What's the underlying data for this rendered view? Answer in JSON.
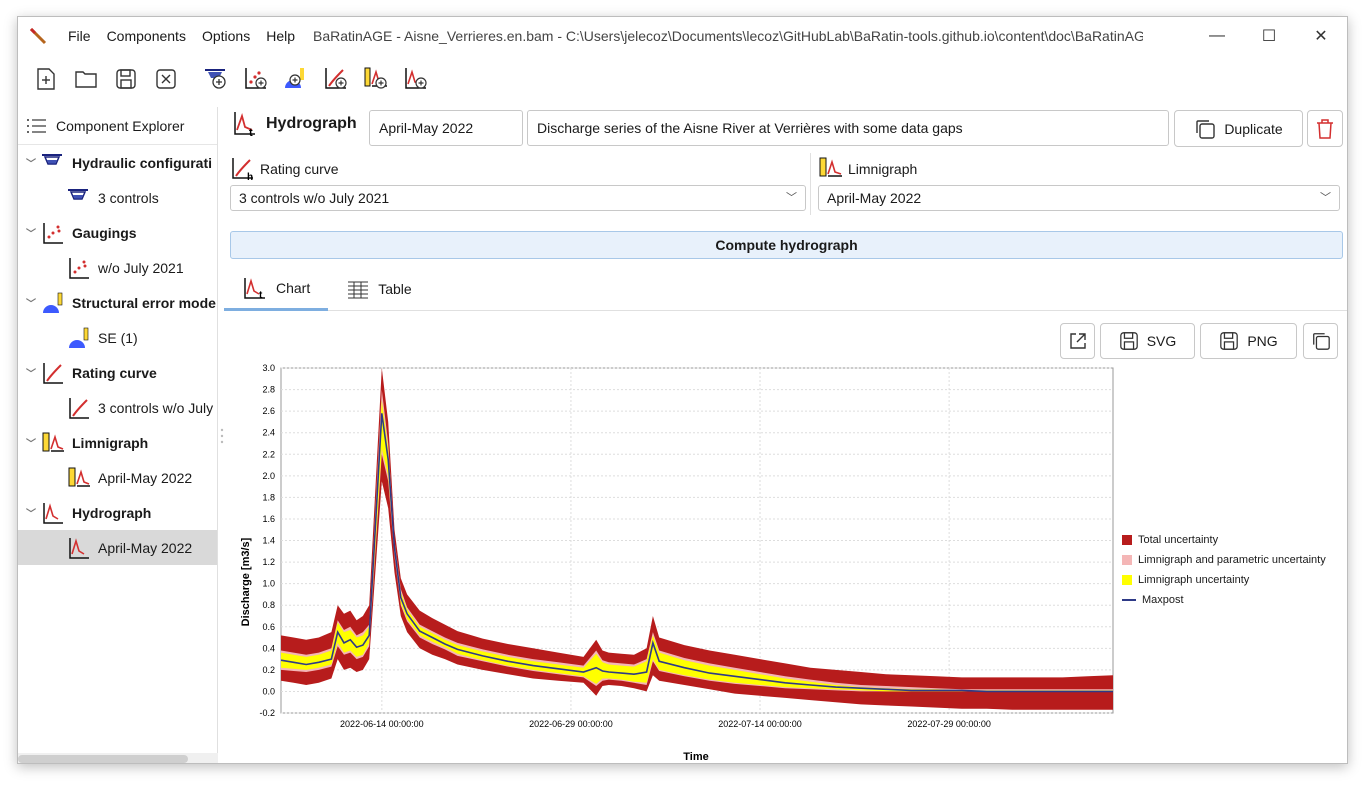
{
  "window": {
    "menu": [
      "File",
      "Components",
      "Options",
      "Help"
    ],
    "title": "BaRatinAGE - Aisne_Verrieres.en.bam - C:\\Users\\jelecoz\\Documents\\lecoz\\GitHubLab\\BaRatin-tools.github.io\\content\\doc\\BaRatinAGE\\Ai",
    "controls": [
      "minimize-icon",
      "maximize-icon",
      "close-icon"
    ]
  },
  "toolbar": {
    "buttons": [
      "new-file-icon",
      "open-folder-icon",
      "save-icon",
      "close-file-icon",
      "add-hydraulic-config-icon",
      "add-gaugings-icon",
      "add-structural-error-icon",
      "add-rating-curve-icon",
      "add-limnigraph-icon",
      "add-hydrograph-icon"
    ]
  },
  "explorer": {
    "title": "Component Explorer",
    "items": [
      {
        "label": "Hydraulic configurati",
        "level": 0,
        "icon": "hydraulic-config-icon"
      },
      {
        "label": "3 controls",
        "level": 1,
        "icon": "hydraulic-config-icon"
      },
      {
        "label": "Gaugings",
        "level": 0,
        "icon": "gaugings-icon"
      },
      {
        "label": "w/o July 2021",
        "level": 1,
        "icon": "gaugings-icon"
      },
      {
        "label": "Structural error mode",
        "level": 0,
        "icon": "structural-error-icon"
      },
      {
        "label": "SE (1)",
        "level": 1,
        "icon": "structural-error-icon"
      },
      {
        "label": "Rating curve",
        "level": 0,
        "icon": "rating-curve-icon"
      },
      {
        "label": "3 controls w/o July",
        "level": 1,
        "icon": "rating-curve-icon"
      },
      {
        "label": "Limnigraph",
        "level": 0,
        "icon": "limnigraph-icon"
      },
      {
        "label": "April-May 2022",
        "level": 1,
        "icon": "limnigraph-icon"
      },
      {
        "label": "Hydrograph",
        "level": 0,
        "icon": "hydrograph-icon"
      },
      {
        "label": "April-May 2022",
        "level": 1,
        "icon": "hydrograph-icon",
        "selected": true
      }
    ]
  },
  "hydrograph": {
    "title": "Hydrograph",
    "name": "April-May 2022",
    "description": "Discharge series of the Aisne River at Verrières with some data gaps",
    "duplicate_label": "Duplicate",
    "rating_curve_label": "Rating curve",
    "rating_curve_value": "3 controls w/o July 2021",
    "limnigraph_label": "Limnigraph",
    "limnigraph_value": "April-May 2022",
    "compute_label": "Compute hydrograph"
  },
  "tabs": [
    {
      "label": "Chart",
      "active": true
    },
    {
      "label": "Table",
      "active": false
    }
  ],
  "chart_actions": {
    "svg_label": "SVG",
    "png_label": "PNG"
  },
  "chart_data": {
    "type": "area",
    "xlabel": "Time",
    "ylabel": "Discharge [m3/s]",
    "ylim": [
      -0.2,
      3.0
    ],
    "yticks": [
      "3.0",
      "2.8",
      "2.6",
      "2.4",
      "2.2",
      "2.0",
      "1.8",
      "1.6",
      "1.4",
      "1.2",
      "1.0",
      "0.8",
      "0.6",
      "0.4",
      "0.2",
      "0.0",
      "-0.2"
    ],
    "xticks": [
      "2022-06-14 00:00:00",
      "2022-06-29 00:00:00",
      "2022-07-14 00:00:00",
      "2022-07-29 00:00:00"
    ],
    "x_days": [
      0,
      1,
      2,
      3,
      4,
      4.5,
      5,
      5.5,
      6,
      6.5,
      7,
      8,
      8.5,
      9,
      9.5,
      10,
      11,
      12,
      13,
      14,
      16,
      18,
      20,
      22,
      24,
      25,
      25.5,
      26,
      27,
      28,
      29,
      29.5,
      30,
      32,
      34,
      36,
      38,
      40,
      42,
      44,
      46,
      48,
      50,
      52,
      54,
      56,
      58,
      60,
      62,
      64,
      66
    ],
    "x_origin": "2022-06-06 00:00:00",
    "series": [
      {
        "name": "Total uncertainty",
        "color": "#b71c1c",
        "lower": [
          0.1,
          0.08,
          0.06,
          0.08,
          0.12,
          0.3,
          0.2,
          0.22,
          0.18,
          0.2,
          0.3,
          1.95,
          1.7,
          1.1,
          0.7,
          0.55,
          0.4,
          0.34,
          0.3,
          0.25,
          0.2,
          0.16,
          0.12,
          0.1,
          0.08,
          -0.04,
          0.05,
          0.06,
          0.05,
          0.03,
          0.0,
          0.15,
          0.1,
          0.06,
          0.02,
          -0.02,
          -0.04,
          -0.06,
          -0.08,
          -0.1,
          -0.12,
          -0.13,
          -0.14,
          -0.15,
          -0.16,
          -0.16,
          -0.17,
          -0.17,
          -0.17,
          -0.17,
          -0.17
        ],
        "upper": [
          0.52,
          0.5,
          0.48,
          0.5,
          0.55,
          0.8,
          0.72,
          0.75,
          0.66,
          0.7,
          0.8,
          3.0,
          2.5,
          1.5,
          1.05,
          0.9,
          0.75,
          0.68,
          0.62,
          0.56,
          0.49,
          0.44,
          0.4,
          0.36,
          0.32,
          0.48,
          0.38,
          0.36,
          0.35,
          0.34,
          0.4,
          0.7,
          0.5,
          0.43,
          0.38,
          0.34,
          0.3,
          0.26,
          0.22,
          0.2,
          0.18,
          0.16,
          0.15,
          0.14,
          0.13,
          0.13,
          0.13,
          0.13,
          0.13,
          0.14,
          0.15
        ]
      },
      {
        "name": "Limnigraph and parametric uncertainty",
        "color": "#f4b6b6",
        "lower": [
          0.2,
          0.19,
          0.18,
          0.2,
          0.23,
          0.42,
          0.34,
          0.36,
          0.3,
          0.32,
          0.42,
          2.2,
          1.95,
          1.25,
          0.8,
          0.65,
          0.5,
          0.44,
          0.39,
          0.33,
          0.28,
          0.23,
          0.19,
          0.16,
          0.13,
          0.05,
          0.1,
          0.11,
          0.1,
          0.08,
          0.06,
          0.28,
          0.19,
          0.14,
          0.1,
          0.07,
          0.05,
          0.03,
          0.02,
          0.01,
          0.0,
          0.0,
          0.0,
          0.0,
          0.0,
          0.0,
          0.0,
          0.0,
          0.0,
          0.0,
          0.0
        ],
        "upper": [
          0.38,
          0.36,
          0.34,
          0.36,
          0.4,
          0.66,
          0.57,
          0.6,
          0.52,
          0.55,
          0.62,
          2.8,
          2.3,
          1.4,
          0.95,
          0.78,
          0.62,
          0.56,
          0.5,
          0.45,
          0.39,
          0.34,
          0.3,
          0.27,
          0.24,
          0.38,
          0.29,
          0.27,
          0.26,
          0.25,
          0.3,
          0.55,
          0.38,
          0.31,
          0.26,
          0.22,
          0.18,
          0.14,
          0.11,
          0.08,
          0.06,
          0.05,
          0.04,
          0.03,
          0.02,
          0.02,
          0.02,
          0.02,
          0.02,
          0.02,
          0.02
        ]
      },
      {
        "name": "Limnigraph uncertainty",
        "color": "#ffff00",
        "lower": [
          0.22,
          0.21,
          0.2,
          0.22,
          0.25,
          0.45,
          0.36,
          0.38,
          0.32,
          0.34,
          0.45,
          2.25,
          2.0,
          1.28,
          0.82,
          0.67,
          0.52,
          0.46,
          0.41,
          0.35,
          0.29,
          0.24,
          0.2,
          0.17,
          0.14,
          0.07,
          0.12,
          0.12,
          0.11,
          0.09,
          0.08,
          0.3,
          0.2,
          0.15,
          0.11,
          0.08,
          0.06,
          0.04,
          0.03,
          0.02,
          0.01,
          0.0,
          0.0,
          0.0,
          0.0,
          0.0,
          0.0,
          0.0,
          0.0,
          0.0,
          0.0
        ],
        "upper": [
          0.36,
          0.34,
          0.32,
          0.34,
          0.38,
          0.64,
          0.55,
          0.57,
          0.5,
          0.52,
          0.6,
          2.7,
          2.25,
          1.38,
          0.92,
          0.76,
          0.6,
          0.54,
          0.48,
          0.43,
          0.37,
          0.32,
          0.28,
          0.25,
          0.22,
          0.35,
          0.27,
          0.25,
          0.24,
          0.23,
          0.28,
          0.52,
          0.36,
          0.29,
          0.24,
          0.2,
          0.16,
          0.12,
          0.09,
          0.06,
          0.04,
          0.03,
          0.02,
          0.02,
          0.01,
          0.01,
          0.01,
          0.01,
          0.01,
          0.01,
          0.01
        ]
      },
      {
        "name": "Maxpost",
        "color": "#2e3a87",
        "values": [
          0.29,
          0.27,
          0.25,
          0.27,
          0.3,
          0.55,
          0.45,
          0.48,
          0.41,
          0.43,
          0.52,
          2.58,
          2.15,
          1.33,
          0.87,
          0.72,
          0.56,
          0.5,
          0.44,
          0.39,
          0.33,
          0.28,
          0.24,
          0.21,
          0.18,
          0.22,
          0.19,
          0.18,
          0.17,
          0.16,
          0.18,
          0.45,
          0.28,
          0.22,
          0.17,
          0.14,
          0.11,
          0.08,
          0.06,
          0.04,
          0.03,
          0.02,
          0.01,
          0.01,
          0.01,
          0.0,
          0.0,
          0.0,
          0.0,
          0.0,
          0.0
        ]
      }
    ],
    "legend_position": "right"
  }
}
